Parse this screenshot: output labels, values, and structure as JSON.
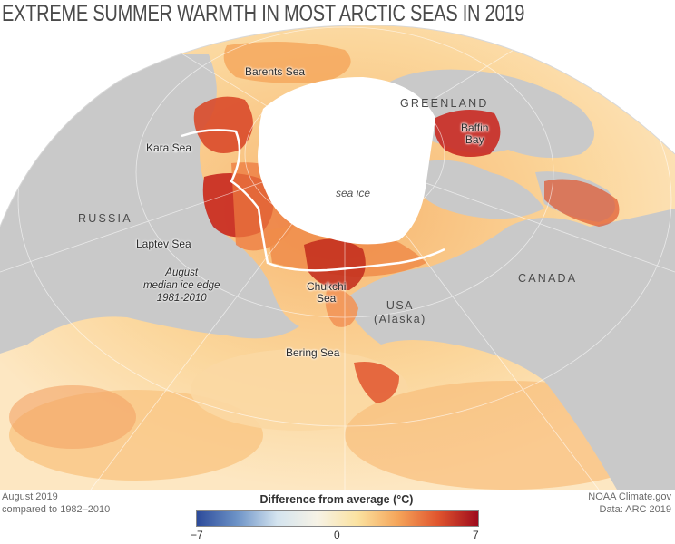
{
  "title": "EXTREME SUMMER WARMTH IN MOST ARCTIC SEAS IN 2019",
  "labels": {
    "barents": "Barents Sea",
    "greenland": "GREENLAND",
    "kara": "Kara Sea",
    "baffin": "Baffin\nBay",
    "sea_ice": "sea ice",
    "russia": "RUSSIA",
    "laptev": "Laptev Sea",
    "ice_edge": "August\nmedian ice edge\n1981-2010",
    "chukchi": "Chukchi\nSea",
    "usa": "USA\n(Alaska)",
    "canada": "CANADA",
    "bering": "Bering Sea"
  },
  "footer": {
    "left_line1": "August 2019",
    "left_line2": "compared to 1982–2010",
    "right_line1": "NOAA Climate.gov",
    "right_line2": "Data: ARC 2019"
  },
  "legend": {
    "title": "Difference from average (°C)",
    "min": "−7",
    "mid": "0",
    "max": "7",
    "colors": [
      "#2c4a9a",
      "#6d93c7",
      "#d4e4ef",
      "#f7f3e6",
      "#fbe2a0",
      "#f5a55a",
      "#e0552e",
      "#9e0b1d"
    ]
  },
  "colors": {
    "land": "#c9c9c9",
    "ocean_warm": "#f9c98a",
    "sea_ice": "#ffffff",
    "ice_edge_line": "#ffffff"
  }
}
